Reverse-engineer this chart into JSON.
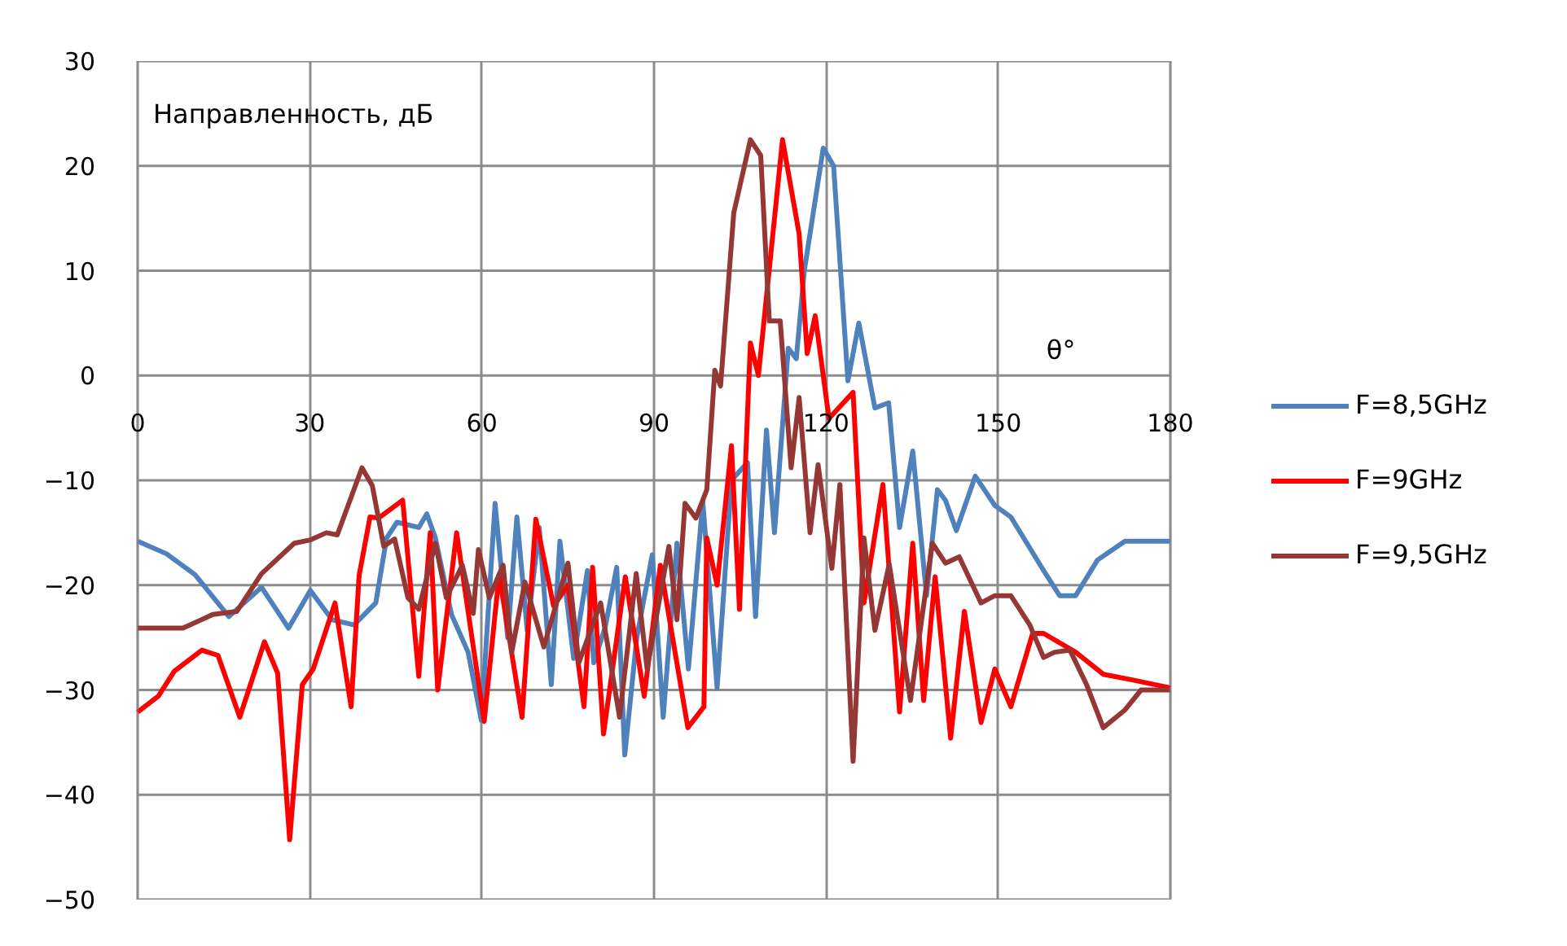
{
  "chart_data": {
    "type": "line",
    "xlabel": "θ°",
    "ylabel": "Направленность, дБ",
    "xlim": [
      0,
      180
    ],
    "ylim": [
      -50,
      30
    ],
    "xticks": [
      0,
      30,
      60,
      90,
      120,
      150,
      180
    ],
    "yticks": [
      -50,
      -40,
      -30,
      -20,
      -10,
      0,
      10,
      20,
      30
    ],
    "grid": true,
    "legend": "right",
    "line_style": "solid",
    "series": [
      {
        "name": "F=8,5GHz",
        "color": "#4f81bd",
        "x": [
          0,
          5,
          10,
          15.9,
          21.6,
          26.3,
          30.1,
          33.9,
          37.7,
          41.5,
          43.4,
          45.2,
          49,
          50.4,
          51.9,
          54.7,
          57.6,
          59.9,
          62.3,
          64.5,
          66.1,
          67.9,
          70,
          72.1,
          73.6,
          76,
          78.4,
          79.5,
          81.5,
          83.5,
          84.9,
          87,
          89.7,
          91.6,
          94,
          96,
          98.5,
          101,
          103.5,
          106.3,
          107.7,
          109.6,
          111,
          113.4,
          114.8,
          116.2,
          119.5,
          121.3,
          123.8,
          125.7,
          128.5,
          130.9,
          132.8,
          135.1,
          137.5,
          139.4,
          140.8,
          142.7,
          146,
          149.4,
          152.2,
          155,
          157.9,
          160.7,
          163.5,
          167.3,
          172.1,
          180
        ],
        "values": [
          -15.8,
          -17,
          -19,
          -23,
          -20.2,
          -24.1,
          -20.5,
          -23.3,
          -23.8,
          -21.7,
          -15.5,
          -14,
          -14.5,
          -13.2,
          -15.5,
          -22.8,
          -26.4,
          -32.9,
          -12.2,
          -25,
          -13.5,
          -24.3,
          -14.5,
          -29.5,
          -15.8,
          -27,
          -18.6,
          -27.4,
          -24,
          -18.3,
          -36.2,
          -25,
          -17.1,
          -32.6,
          -16,
          -28,
          -12,
          -29.8,
          -10,
          -8.3,
          -23,
          -5.2,
          -15,
          2.6,
          1.6,
          10,
          21.7,
          20,
          -0.5,
          5,
          -3.1,
          -2.6,
          -14.5,
          -7.2,
          -21,
          -10.9,
          -11.9,
          -14.8,
          -9.6,
          -12.4,
          -13.5,
          -16,
          -18.6,
          -21,
          -21,
          -17.6,
          -15.8,
          -15.8
        ]
      },
      {
        "name": "F=9GHz",
        "color": "#ff0000",
        "x": [
          0,
          3.6,
          6.4,
          11.2,
          14,
          17.8,
          22.1,
          24.4,
          26.5,
          28.7,
          30.6,
          34.4,
          37.2,
          38.6,
          40.5,
          42,
          46.2,
          49,
          51,
          52.3,
          55.6,
          60.4,
          63,
          67,
          69.4,
          72.5,
          75,
          77.8,
          79.3,
          81.2,
          85,
          88.3,
          91.1,
          95.9,
          98.7,
          99.2,
          101,
          103.5,
          104.9,
          106.8,
          108.2,
          112.4,
          115.3,
          116.7,
          118.1,
          120.5,
          124.7,
          126.6,
          129.9,
          132.8,
          135.1,
          137,
          139,
          141.7,
          144.1,
          147,
          149.4,
          152.2,
          156,
          157.9,
          163.5,
          168.3,
          173,
          180
        ],
        "values": [
          -32.1,
          -30.6,
          -28.2,
          -26.2,
          -26.7,
          -32.6,
          -25.4,
          -28.4,
          -44.3,
          -29.5,
          -28,
          -21.7,
          -31.6,
          -19.1,
          -13.5,
          -13.6,
          -11.9,
          -28.7,
          -15,
          -30,
          -15,
          -33,
          -19,
          -32.6,
          -13.7,
          -22,
          -20,
          -31.6,
          -18.3,
          -34.2,
          -19.2,
          -30.6,
          -18.1,
          -33.6,
          -31.6,
          -15.5,
          -20,
          -6.7,
          -22.3,
          3.1,
          0,
          22.5,
          13.5,
          2.1,
          5.7,
          -4.1,
          -1.6,
          -21.7,
          -10.4,
          -32.1,
          -16,
          -31,
          -19.2,
          -34.6,
          -22.5,
          -33.1,
          -28,
          -31.6,
          -24.6,
          -24.6,
          -26.4,
          -28.5,
          -29,
          -29.8
        ]
      },
      {
        "name": "F=9,5GHz",
        "color": "#953735",
        "x": [
          0,
          7.9,
          13.1,
          17.3,
          21.6,
          27.3,
          30,
          32.9,
          34.8,
          39.1,
          40.9,
          42.9,
          44.8,
          47.1,
          49,
          51.9,
          53.8,
          56.6,
          58.5,
          59.4,
          61.3,
          63.7,
          65.2,
          67.5,
          70.8,
          75,
          76.9,
          80.7,
          84,
          86.9,
          88.8,
          92.6,
          94,
          95.4,
          97.3,
          99.2,
          100.6,
          101.6,
          103.9,
          106.8,
          108.6,
          110.1,
          112,
          113.9,
          115.3,
          117.2,
          118.6,
          121,
          122.4,
          124.7,
          126.6,
          128.5,
          131,
          134.7,
          138.5,
          140.8,
          143.2,
          147,
          149.4,
          152.2,
          155.5,
          157.9,
          159.8,
          162.5,
          165.4,
          168.3,
          172.1,
          174.9,
          180
        ],
        "values": [
          -24.1,
          -24.1,
          -22.8,
          -22.5,
          -18.9,
          -16,
          -15.7,
          -15,
          -15.2,
          -8.8,
          -10.5,
          -16.3,
          -15.6,
          -21.2,
          -22.3,
          -16,
          -21.2,
          -18.1,
          -22.7,
          -16.6,
          -21.2,
          -18.1,
          -26.4,
          -19.7,
          -25.9,
          -17.9,
          -27.4,
          -21.7,
          -32.6,
          -18.9,
          -28,
          -16.3,
          -23.3,
          -12.2,
          -13.6,
          -10.9,
          0.5,
          -1,
          15.5,
          22.5,
          21,
          5.2,
          5.2,
          -8.8,
          -2.1,
          -15,
          -8.5,
          -18.4,
          -10.4,
          -36.8,
          -15.5,
          -24.3,
          -18,
          -31,
          -16,
          -17.9,
          -17.3,
          -21.7,
          -21,
          -21,
          -23.8,
          -26.9,
          -26.4,
          -26.2,
          -29.5,
          -33.6,
          -31.9,
          -30,
          -30
        ]
      }
    ]
  }
}
